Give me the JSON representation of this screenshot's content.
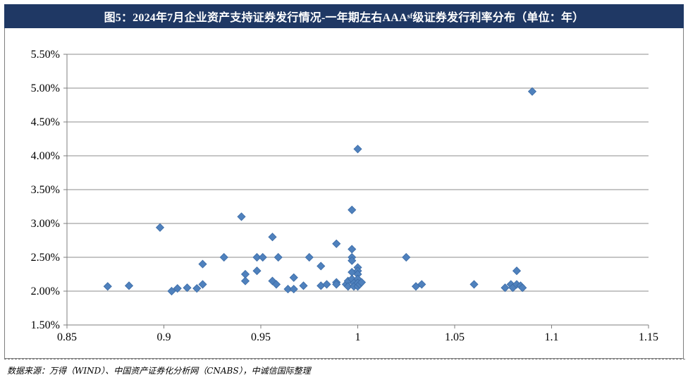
{
  "header": {
    "title_main": "图5：2024年7月企业资产支持证券发行情况-一年期左右AAA",
    "title_sub": "sf",
    "title_tail": "级证券发行利率分布（单位：年）"
  },
  "footer": {
    "source": "数据来源：万得（WIND）、中国资产证券化分析网（CNABS），中诚信国际整理"
  },
  "chart_data": {
    "type": "scatter",
    "title": "图5：2024年7月企业资产支持证券发行情况-一年期左右AAAsf级证券发行利率分布（单位：年）",
    "xlabel": "",
    "ylabel": "",
    "xlim": [
      0.85,
      1.15
    ],
    "ylim": [
      1.5,
      5.5
    ],
    "x_ticks": [
      "0.85",
      "0.9",
      "0.95",
      "1",
      "1.05",
      "1.1",
      "1.15"
    ],
    "y_ticks": [
      "1.50%",
      "2.00%",
      "2.50%",
      "3.00%",
      "3.50%",
      "4.00%",
      "4.50%",
      "5.00%",
      "5.50%"
    ],
    "grid": "horizontal",
    "legend": "none",
    "marker_color": "#4f81bd",
    "marker_edge": "#3a6aa5",
    "points": [
      {
        "x": 0.871,
        "y": 2.07
      },
      {
        "x": 0.882,
        "y": 2.08
      },
      {
        "x": 0.898,
        "y": 2.94
      },
      {
        "x": 0.904,
        "y": 2.0
      },
      {
        "x": 0.907,
        "y": 2.04
      },
      {
        "x": 0.912,
        "y": 2.05
      },
      {
        "x": 0.917,
        "y": 2.04
      },
      {
        "x": 0.92,
        "y": 2.1
      },
      {
        "x": 0.92,
        "y": 2.4
      },
      {
        "x": 0.931,
        "y": 2.5
      },
      {
        "x": 0.94,
        "y": 3.1
      },
      {
        "x": 0.942,
        "y": 2.25
      },
      {
        "x": 0.942,
        "y": 2.15
      },
      {
        "x": 0.948,
        "y": 2.3
      },
      {
        "x": 0.948,
        "y": 2.5
      },
      {
        "x": 0.951,
        "y": 2.5
      },
      {
        "x": 0.956,
        "y": 2.8
      },
      {
        "x": 0.956,
        "y": 2.15
      },
      {
        "x": 0.958,
        "y": 2.1
      },
      {
        "x": 0.959,
        "y": 2.5
      },
      {
        "x": 0.964,
        "y": 2.03
      },
      {
        "x": 0.967,
        "y": 2.2
      },
      {
        "x": 0.967,
        "y": 2.03
      },
      {
        "x": 0.972,
        "y": 2.08
      },
      {
        "x": 0.975,
        "y": 2.5
      },
      {
        "x": 0.981,
        "y": 2.37
      },
      {
        "x": 0.981,
        "y": 2.08
      },
      {
        "x": 0.984,
        "y": 2.1
      },
      {
        "x": 0.989,
        "y": 2.7
      },
      {
        "x": 0.989,
        "y": 2.13
      },
      {
        "x": 0.989,
        "y": 2.1
      },
      {
        "x": 0.994,
        "y": 2.1
      },
      {
        "x": 0.995,
        "y": 2.15
      },
      {
        "x": 0.995,
        "y": 2.07
      },
      {
        "x": 0.997,
        "y": 3.2
      },
      {
        "x": 0.997,
        "y": 2.62
      },
      {
        "x": 0.997,
        "y": 2.5
      },
      {
        "x": 0.997,
        "y": 2.45
      },
      {
        "x": 0.997,
        "y": 2.28
      },
      {
        "x": 0.997,
        "y": 2.18
      },
      {
        "x": 0.998,
        "y": 2.12
      },
      {
        "x": 0.998,
        "y": 2.07
      },
      {
        "x": 1.0,
        "y": 4.1
      },
      {
        "x": 1.0,
        "y": 2.35
      },
      {
        "x": 1.0,
        "y": 2.3
      },
      {
        "x": 1.0,
        "y": 2.25
      },
      {
        "x": 1.0,
        "y": 2.18
      },
      {
        "x": 1.0,
        "y": 2.12
      },
      {
        "x": 1.0,
        "y": 2.07
      },
      {
        "x": 1.001,
        "y": 2.1
      },
      {
        "x": 1.002,
        "y": 2.13
      },
      {
        "x": 1.025,
        "y": 2.5
      },
      {
        "x": 1.03,
        "y": 2.07
      },
      {
        "x": 1.033,
        "y": 2.1
      },
      {
        "x": 1.06,
        "y": 2.1
      },
      {
        "x": 1.076,
        "y": 2.05
      },
      {
        "x": 1.079,
        "y": 2.1
      },
      {
        "x": 1.08,
        "y": 2.05
      },
      {
        "x": 1.082,
        "y": 2.3
      },
      {
        "x": 1.082,
        "y": 2.1
      },
      {
        "x": 1.084,
        "y": 2.08
      },
      {
        "x": 1.085,
        "y": 2.05
      },
      {
        "x": 1.09,
        "y": 4.95
      }
    ]
  }
}
